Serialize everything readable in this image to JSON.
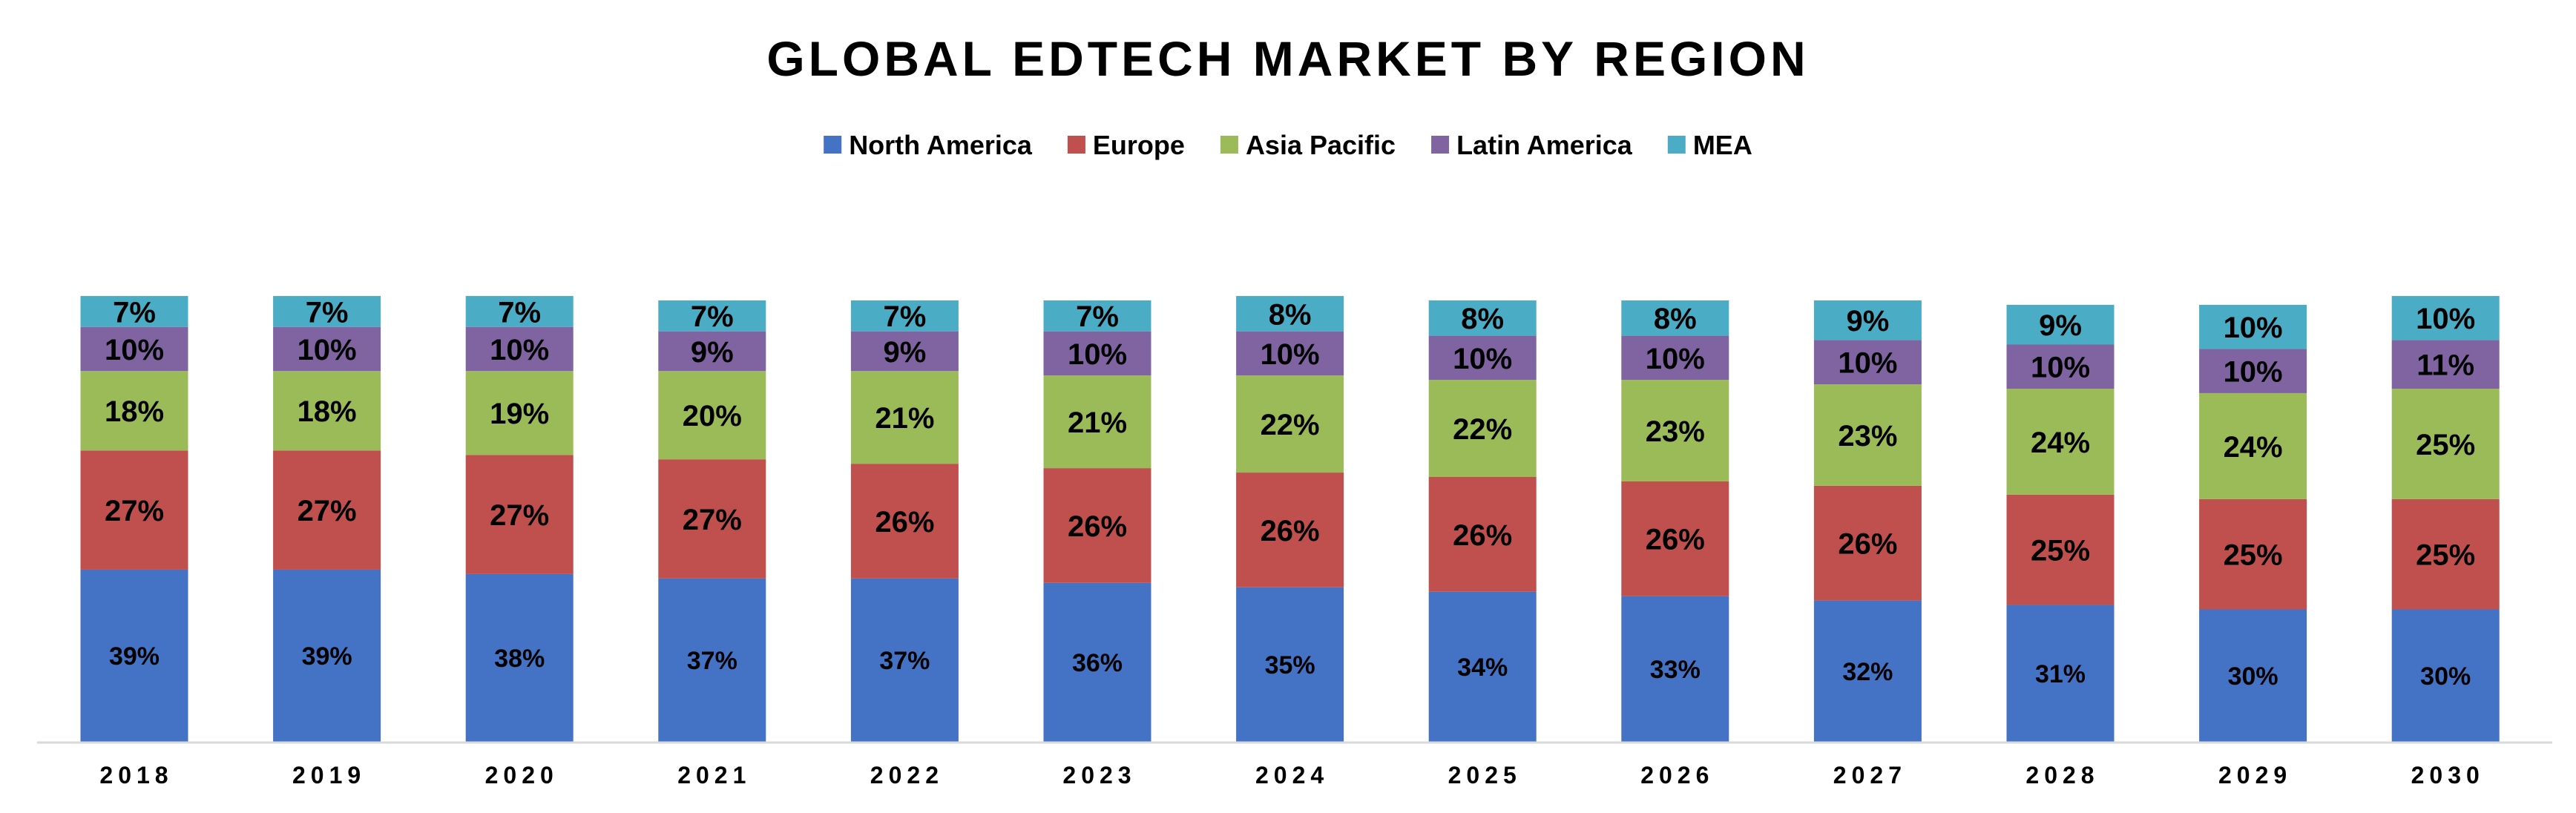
{
  "chart_data": {
    "type": "bar",
    "stacked": true,
    "title": "GLOBAL EDTECH MARKET BY REGION",
    "xlabel": "",
    "ylabel": "",
    "ylim": [
      0,
      100
    ],
    "grid": false,
    "legend_position": "top-center",
    "categories": [
      "2018",
      "2019",
      "2020",
      "2021",
      "2022",
      "2023",
      "2024",
      "2025",
      "2026",
      "2027",
      "2028",
      "2029",
      "2030"
    ],
    "series": [
      {
        "name": "North America",
        "color": "#4472C4",
        "values": [
          39,
          39,
          38,
          37,
          37,
          36,
          35,
          34,
          33,
          32,
          31,
          30,
          30
        ]
      },
      {
        "name": "Europe",
        "color": "#C0504D",
        "values": [
          27,
          27,
          27,
          27,
          26,
          26,
          26,
          26,
          26,
          26,
          25,
          25,
          25
        ]
      },
      {
        "name": "Asia Pacific",
        "color": "#9BBB59",
        "values": [
          18,
          18,
          19,
          20,
          21,
          21,
          22,
          22,
          23,
          23,
          24,
          24,
          25
        ]
      },
      {
        "name": "Latin America",
        "color": "#8064A2",
        "values": [
          10,
          10,
          10,
          9,
          9,
          10,
          10,
          10,
          10,
          10,
          10,
          10,
          11
        ]
      },
      {
        "name": "MEA",
        "color": "#4BACC6",
        "values": [
          7,
          7,
          7,
          7,
          7,
          7,
          8,
          8,
          8,
          9,
          9,
          10,
          10
        ]
      }
    ],
    "data_labels": [
      [
        "39%",
        "39%",
        "38%",
        "37%",
        "37%",
        "36%",
        "35%",
        "34%",
        "33%",
        "32%",
        "31%",
        "30%",
        "30%"
      ],
      [
        "27%",
        "27%",
        "27%",
        "27%",
        "26%",
        "26%",
        "26%",
        "26%",
        "26%",
        "26%",
        "25%",
        "25%",
        "25%"
      ],
      [
        "18%",
        "18%",
        "19%",
        "20%",
        "21%",
        "21%",
        "22%",
        "22%",
        "23%",
        "23%",
        "24%",
        "24%",
        "25%"
      ],
      [
        "10%",
        "10%",
        "10%",
        "9%",
        "9%",
        "10%",
        "10%",
        "10%",
        "10%",
        "10%",
        "10%",
        "10%",
        "11%"
      ],
      [
        "7%",
        "7%",
        "7%",
        "7%",
        "7%",
        "7%",
        "8%",
        "8%",
        "8%",
        "9%",
        "9%",
        "10%",
        "10%"
      ]
    ]
  }
}
